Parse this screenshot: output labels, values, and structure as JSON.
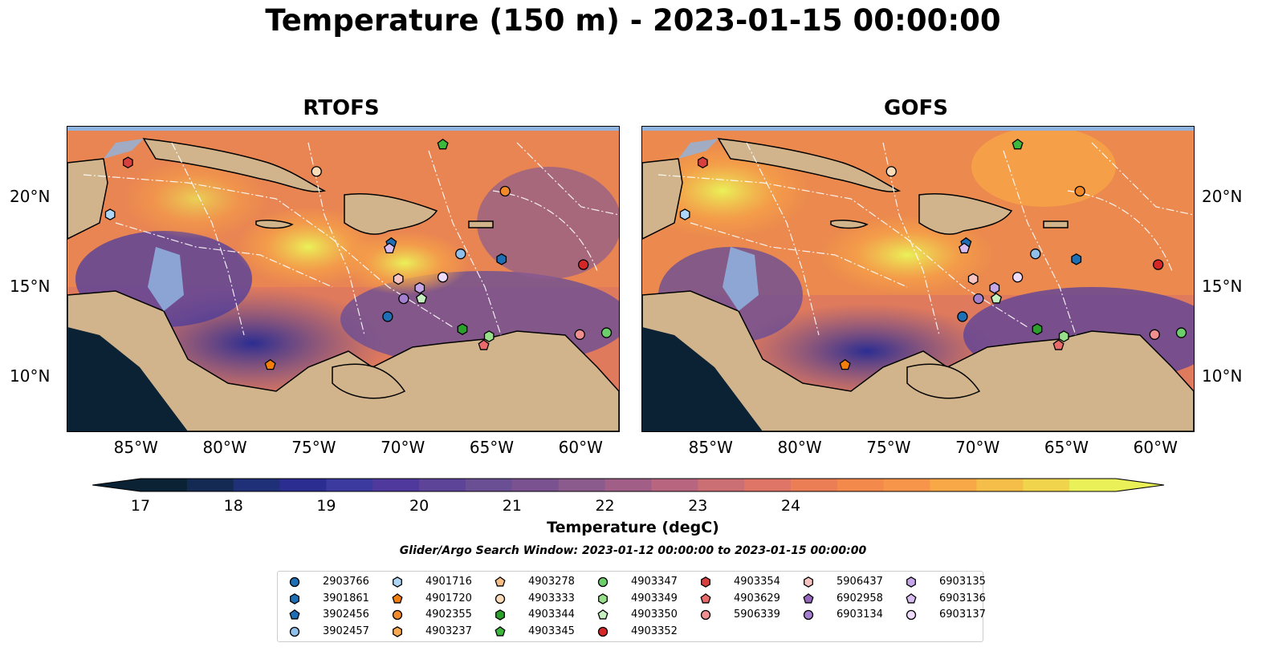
{
  "title": "Temperature (150 m) - 2023-01-15 00:00:00",
  "panels": [
    {
      "title": "RTOFS"
    },
    {
      "title": "GOFS"
    }
  ],
  "axes": {
    "lon_ticks": [
      "85°W",
      "80°W",
      "75°W",
      "70°W",
      "65°W",
      "60°W"
    ],
    "lat_ticks": [
      "20°N",
      "15°N",
      "10°N"
    ]
  },
  "colorbar": {
    "label": "Temperature (degC)",
    "ticks": [
      "17",
      "18",
      "19",
      "20",
      "21",
      "22",
      "23",
      "24"
    ],
    "range": [
      16.5,
      25.0
    ],
    "colors": [
      "#0a2233",
      "#142a52",
      "#203078",
      "#2b2d91",
      "#3c3a9e",
      "#50399c",
      "#5e4498",
      "#6b4f95",
      "#7b5290",
      "#8c5b8e",
      "#a15f88",
      "#b86680",
      "#cc6f75",
      "#df7566",
      "#ec7e55",
      "#f38a4b",
      "#f7964a",
      "#f9a847",
      "#f5be48",
      "#efd44c",
      "#eaf158"
    ],
    "extend": "both"
  },
  "search_window": "Glider/Argo Search Window: 2023-01-12 00:00:00 to 2023-01-15 00:00:00",
  "legend": {
    "items": [
      {
        "id": "2903766",
        "marker": "circle",
        "color": "#1f6fb4"
      },
      {
        "id": "3901861",
        "marker": "hexagon",
        "color": "#1f6fb4"
      },
      {
        "id": "3902456",
        "marker": "pentagon",
        "color": "#1f6fb4"
      },
      {
        "id": "3902457",
        "marker": "circle",
        "color": "#90c0ea"
      },
      {
        "id": "4901716",
        "marker": "hexagon",
        "color": "#aed6f6"
      },
      {
        "id": "4901720",
        "marker": "pentagon",
        "color": "#f27f0c"
      },
      {
        "id": "4902355",
        "marker": "circle",
        "color": "#f28a2a"
      },
      {
        "id": "4903237",
        "marker": "hexagon",
        "color": "#f8a84e"
      },
      {
        "id": "4903278",
        "marker": "pentagon",
        "color": "#f7bf86"
      },
      {
        "id": "4903333",
        "marker": "circle",
        "color": "#fbdcb8"
      },
      {
        "id": "4903344",
        "marker": "hexagon",
        "color": "#2ca02c"
      },
      {
        "id": "4903345",
        "marker": "pentagon",
        "color": "#3cb83c"
      },
      {
        "id": "4903347",
        "marker": "circle",
        "color": "#6ccf6c"
      },
      {
        "id": "4903349",
        "marker": "hexagon",
        "color": "#98df8a"
      },
      {
        "id": "4903350",
        "marker": "pentagon",
        "color": "#c7f0c0"
      },
      {
        "id": "4903352",
        "marker": "circle",
        "color": "#d62728"
      },
      {
        "id": "4903354",
        "marker": "hexagon",
        "color": "#d84040"
      },
      {
        "id": "4903629",
        "marker": "pentagon",
        "color": "#e96a6a"
      },
      {
        "id": "5906339",
        "marker": "circle",
        "color": "#f08f8f"
      },
      {
        "id": "5906437",
        "marker": "hexagon",
        "color": "#f7c3c3"
      },
      {
        "id": "6902958",
        "marker": "pentagon",
        "color": "#9467bd"
      },
      {
        "id": "6903134",
        "marker": "circle",
        "color": "#a47fcf"
      },
      {
        "id": "6903135",
        "marker": "hexagon",
        "color": "#c5a6e6"
      },
      {
        "id": "6903136",
        "marker": "pentagon",
        "color": "#d7bdf0"
      },
      {
        "id": "6903137",
        "marker": "circle",
        "color": "#eedcfc"
      }
    ]
  },
  "floats": [
    {
      "id": "4903354",
      "lon": -85.6,
      "lat": 22.0
    },
    {
      "id": "4901716",
      "lon": -86.6,
      "lat": 19.1
    },
    {
      "id": "4903333",
      "lon": -75.0,
      "lat": 21.5
    },
    {
      "id": "4903345",
      "lon": -67.9,
      "lat": 23.0
    },
    {
      "id": "4902355",
      "lon": -64.4,
      "lat": 20.4
    },
    {
      "id": "3902456",
      "lon": -70.8,
      "lat": 17.5
    },
    {
      "id": "6903136",
      "lon": -70.9,
      "lat": 17.2
    },
    {
      "id": "3902457",
      "lon": -66.9,
      "lat": 16.9
    },
    {
      "id": "3901861",
      "lon": -64.6,
      "lat": 16.6
    },
    {
      "id": "4903352",
      "lon": -60.0,
      "lat": 16.3
    },
    {
      "id": "5906437",
      "lon": -70.4,
      "lat": 15.5
    },
    {
      "id": "6903135",
      "lon": -69.2,
      "lat": 15.0
    },
    {
      "id": "6903137",
      "lon": -67.9,
      "lat": 15.6
    },
    {
      "id": "6903134",
      "lon": -70.1,
      "lat": 14.4
    },
    {
      "id": "4903350",
      "lon": -69.1,
      "lat": 14.4
    },
    {
      "id": "2903766",
      "lon": -71.0,
      "lat": 13.4
    },
    {
      "id": "4903344",
      "lon": -66.8,
      "lat": 12.7
    },
    {
      "id": "4903349",
      "lon": -65.3,
      "lat": 12.3
    },
    {
      "id": "4903629",
      "lon": -65.6,
      "lat": 11.8
    },
    {
      "id": "5906339",
      "lon": -60.2,
      "lat": 12.4
    },
    {
      "id": "4903347",
      "lon": -58.7,
      "lat": 12.5
    },
    {
      "id": "4901720",
      "lon": -77.6,
      "lat": 10.7
    }
  ]
}
